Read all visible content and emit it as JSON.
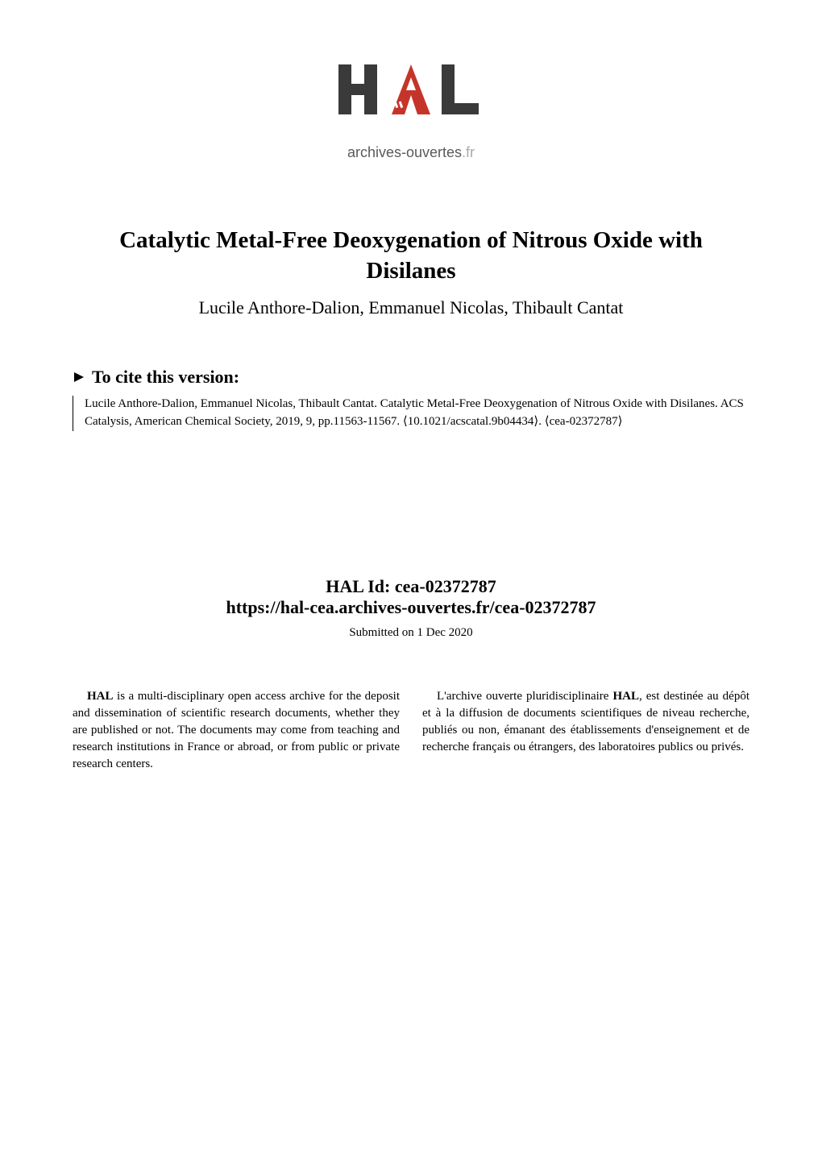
{
  "logo": {
    "text_line1": "HAL",
    "text_line2_left": "archives-ouvertes",
    "text_line2_right": ".fr",
    "color_dark": "#3a3a3a",
    "color_red": "#c5342a",
    "color_light": "#9a9a9a"
  },
  "title": "Catalytic Metal-Free Deoxygenation of Nitrous Oxide with Disilanes",
  "authors": "Lucile Anthore-Dalion, Emmanuel Nicolas, Thibault Cantat",
  "cite_label": "To cite this version:",
  "citation": "Lucile Anthore-Dalion, Emmanuel Nicolas, Thibault Cantat. Catalytic Metal-Free Deoxygenation of Nitrous Oxide with Disilanes. ACS Catalysis, American Chemical Society, 2019, 9, pp.11563-11567. ⟨10.1021/acscatal.9b04434⟩. ⟨cea-02372787⟩",
  "hal_id_label": "HAL Id: cea-02372787",
  "hal_url": "https://hal-cea.archives-ouvertes.fr/cea-02372787",
  "submitted": "Submitted on 1 Dec 2020",
  "col_left": "HAL is a multi-disciplinary open access archive for the deposit and dissemination of scientific research documents, whether they are published or not. The documents may come from teaching and research institutions in France or abroad, or from public or private research centers.",
  "col_left_bold": "HAL",
  "col_right": "L'archive ouverte pluridisciplinaire HAL, est destinée au dépôt et à la diffusion de documents scientifiques de niveau recherche, publiés ou non, émanant des établissements d'enseignement et de recherche français ou étrangers, des laboratoires publics ou privés.",
  "col_right_bold": "HAL"
}
